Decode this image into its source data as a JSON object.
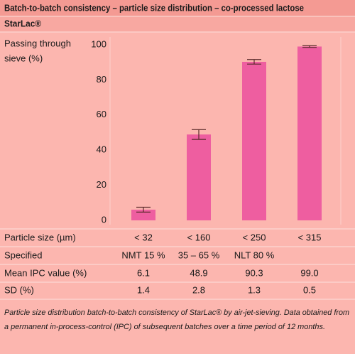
{
  "chart_data": {
    "type": "bar",
    "title": "Batch-to-batch consistency – particle size distribution – co-processed lactose",
    "subtitle": "StarLac®",
    "ylabel_lines": [
      "Passing through",
      "sieve (%)"
    ],
    "x_label": "Particle size (µm)",
    "categories": [
      "< 32",
      "< 160",
      "< 250",
      "< 315"
    ],
    "series": [
      {
        "name": "Mean IPC value (%)",
        "color": "#ee5ea0",
        "values": [
          6.1,
          48.9,
          90.3,
          99.0
        ],
        "value_labels": [
          "6.1",
          "48.9",
          "90.3",
          "99.0"
        ],
        "errors": [
          1.4,
          2.8,
          1.3,
          0.5
        ]
      }
    ],
    "errors_label": "SD (%)",
    "specified_label": "Specified",
    "specified": [
      "NMT 15 %",
      "35 – 65 %",
      "NLT 80 %",
      null
    ],
    "ylim": [
      0,
      100
    ],
    "yticks": [
      0,
      20,
      40,
      60,
      80,
      100
    ],
    "caption_lines": [
      "Particle size distribution batch-to-batch consistency of StarLac® by air-jet-sieving. Data obtained from",
      "a permanent in-process-control (IPC) of subsequent batches over a time period of 12 months."
    ]
  }
}
